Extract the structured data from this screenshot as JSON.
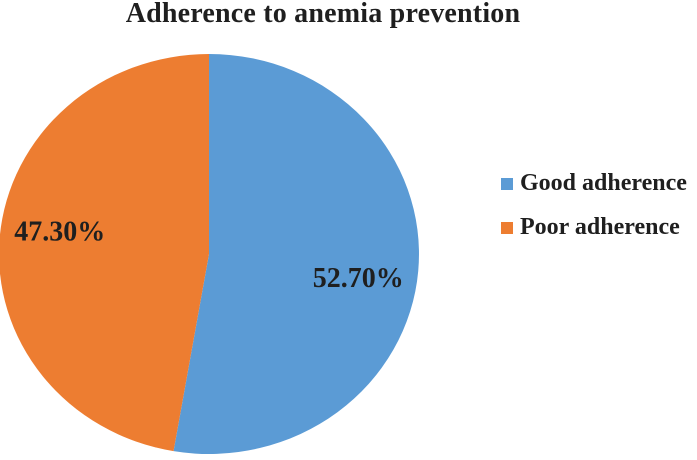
{
  "figure": {
    "background": "#ffffff",
    "text_color": "#1f1f1f"
  },
  "chart_data": {
    "type": "pie",
    "title": "Adherence to anemia prevention",
    "slices": [
      {
        "label": "Good adherence",
        "value": 52.7,
        "display_label": "52.70%",
        "color": "#5B9BD5"
      },
      {
        "label": "Poor adherence",
        "value": 47.3,
        "display_label": "47.30%",
        "color": "#ED7D31"
      }
    ],
    "start_angle_deg": 0,
    "direction": "clockwise",
    "legend_position": "right-middle",
    "data_label_color": "#1f1f1f",
    "layout": {
      "label_radius_factor": 0.72,
      "label_angle_offset_deg": 4.5,
      "legend_on": true,
      "grid_on": false
    }
  }
}
